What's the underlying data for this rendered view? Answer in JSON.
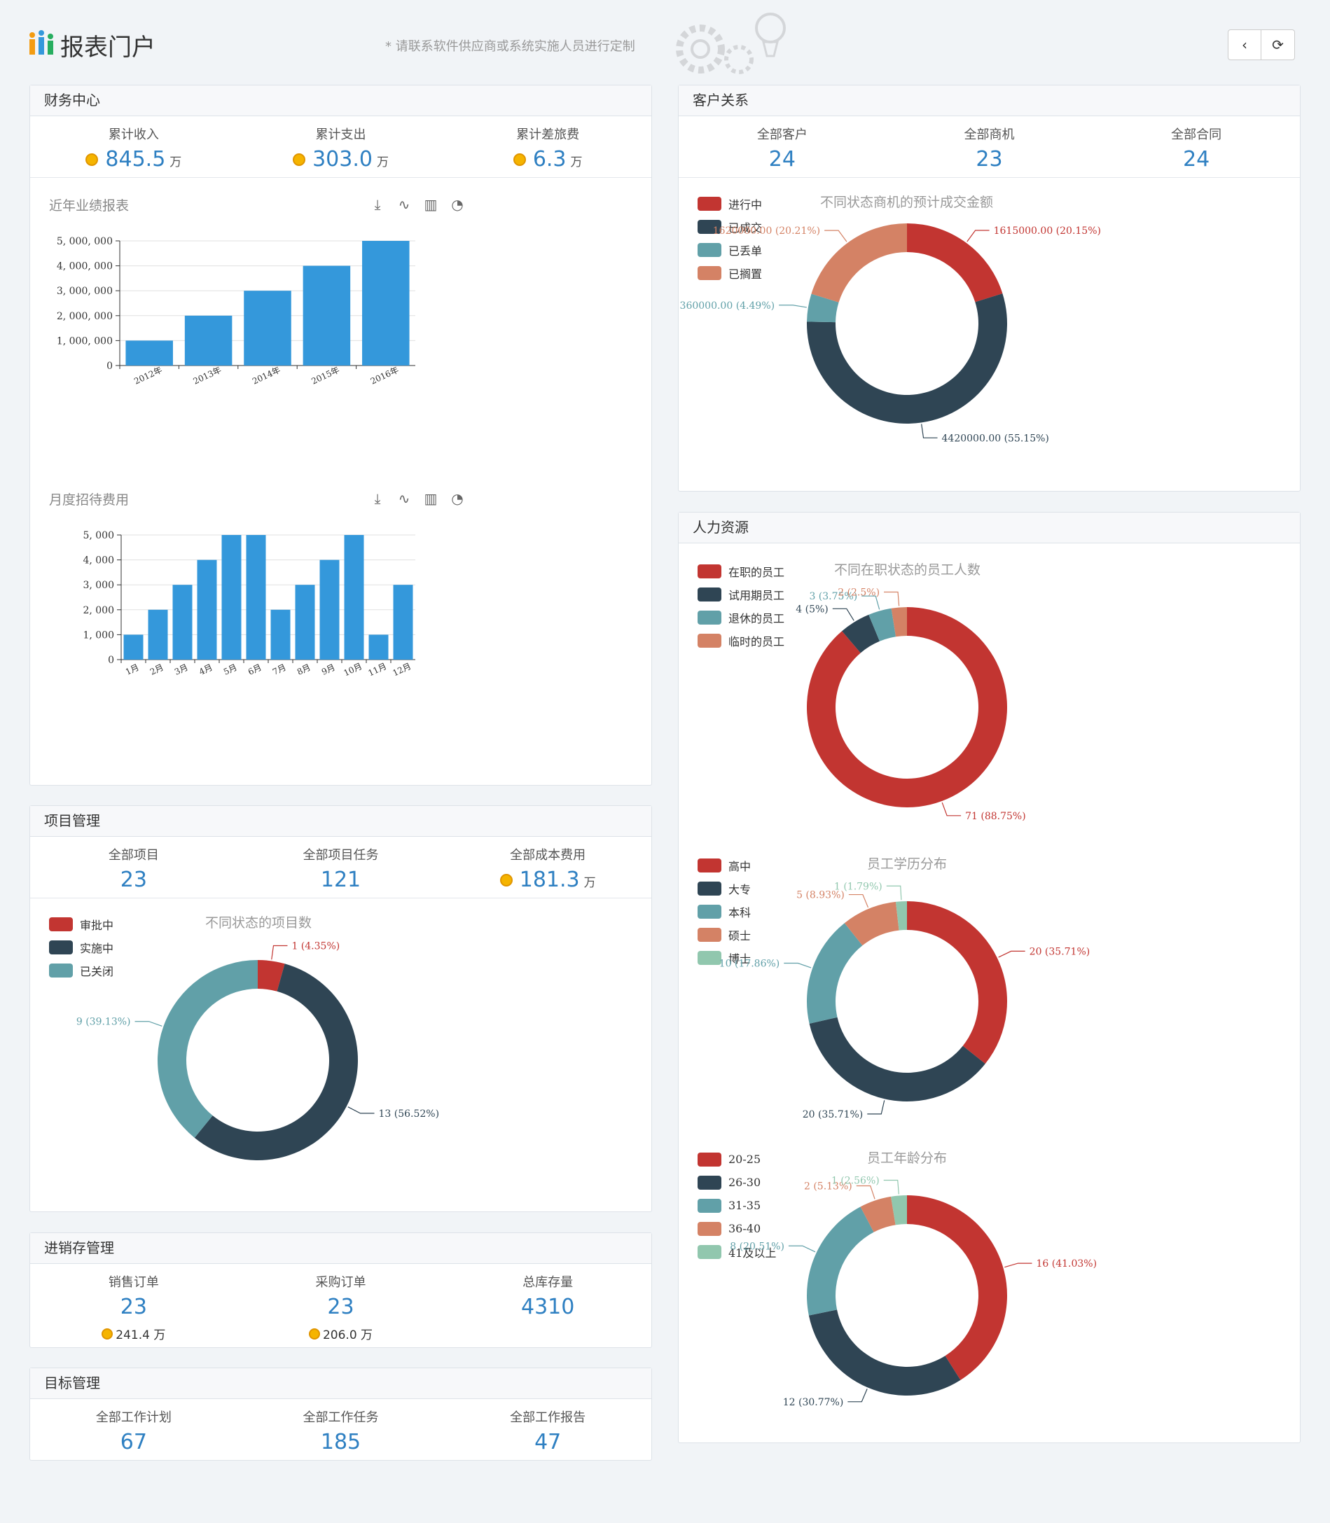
{
  "header": {
    "title": "报表门户",
    "tip": "* 请联系软件供应商或系统实施人员进行定制",
    "back_icon": "‹",
    "refresh_icon": "⟳"
  },
  "finance": {
    "title": "财务中心",
    "stats": [
      {
        "label": "累计收入",
        "value": "845.5",
        "unit": "万"
      },
      {
        "label": "累计支出",
        "value": "303.0",
        "unit": "万"
      },
      {
        "label": "累计差旅费",
        "value": "6.3",
        "unit": "万"
      }
    ],
    "toolbox": [
      "⤓",
      "∿",
      "▥",
      "◔"
    ]
  },
  "crm": {
    "title": "客户关系",
    "stats": [
      {
        "label": "全部客户",
        "value": "24"
      },
      {
        "label": "全部商机",
        "value": "23"
      },
      {
        "label": "全部合同",
        "value": "24"
      }
    ]
  },
  "hr": {
    "title": "人力资源"
  },
  "project": {
    "title": "项目管理",
    "stats": [
      {
        "label": "全部项目",
        "value": "23"
      },
      {
        "label": "全部项目任务",
        "value": "121"
      },
      {
        "label": "全部成本费用",
        "value": "181.3",
        "unit": "万"
      }
    ]
  },
  "inventory": {
    "title": "进销存管理",
    "stats": [
      {
        "label": "销售订单",
        "value": "23",
        "sub": "241.4 万"
      },
      {
        "label": "采购订单",
        "value": "23",
        "sub": "206.0 万"
      },
      {
        "label": "总库存量",
        "value": "4310"
      }
    ]
  },
  "goals": {
    "title": "目标管理",
    "stats": [
      {
        "label": "全部工作计划",
        "value": "67"
      },
      {
        "label": "全部工作任务",
        "value": "185"
      },
      {
        "label": "全部工作报告",
        "value": "47"
      }
    ]
  },
  "chart_data": [
    {
      "id": "yearly",
      "type": "bar",
      "title": "近年业绩报表",
      "categories": [
        "2012年",
        "2013年",
        "2014年",
        "2015年",
        "2016年"
      ],
      "values": [
        1000000,
        2000000,
        3000000,
        4000000,
        5000000
      ],
      "ylim": [
        0,
        5000000
      ],
      "yticks": [
        "0",
        "1, 000, 000",
        "2, 000, 000",
        "3, 000, 000",
        "4, 000, 000",
        "5, 000, 000"
      ],
      "color": "#3498db"
    },
    {
      "id": "monthly",
      "type": "bar",
      "title": "月度招待费用",
      "categories": [
        "1月",
        "2月",
        "3月",
        "4月",
        "5月",
        "6月",
        "7月",
        "8月",
        "9月",
        "10月",
        "11月",
        "12月"
      ],
      "values": [
        1000,
        2000,
        3000,
        4000,
        5000,
        5000,
        2000,
        3000,
        4000,
        5000,
        1000,
        3000
      ],
      "ylim": [
        0,
        5000
      ],
      "yticks": [
        "0",
        "1, 000",
        "2, 000",
        "3, 000",
        "4, 000",
        "5, 000"
      ],
      "color": "#3498db"
    },
    {
      "id": "opportunity",
      "type": "pie",
      "title": "不同状态商机的预计成交金额",
      "legend": [
        "进行中",
        "已成交",
        "已丢单",
        "已搁置"
      ],
      "colors": [
        "#c23531",
        "#2f4554",
        "#61a0a8",
        "#d48265"
      ],
      "values": [
        1615000,
        4420000,
        360000,
        1620000
      ],
      "labels": [
        "1615000.00 (20.15%)",
        "4420000.00 (55.15%)",
        "360000.00 (4.49%)",
        "1620000.00 (20.21%)"
      ]
    },
    {
      "id": "staff_status",
      "type": "pie",
      "title": "不同在职状态的员工人数",
      "legend": [
        "在职的员工",
        "试用期员工",
        "退休的员工",
        "临时的员工"
      ],
      "colors": [
        "#c23531",
        "#2f4554",
        "#61a0a8",
        "#d48265"
      ],
      "values": [
        71,
        4,
        3,
        2
      ],
      "labels": [
        "71 (88.75%)",
        "4 (5%)",
        "3 (3.75%)",
        "2 (2.5%)"
      ]
    },
    {
      "id": "education",
      "type": "pie",
      "title": "员工学历分布",
      "legend": [
        "高中",
        "大专",
        "本科",
        "硕士",
        "博士"
      ],
      "colors": [
        "#c23531",
        "#2f4554",
        "#61a0a8",
        "#d48265",
        "#91c7ae"
      ],
      "values": [
        20,
        20,
        10,
        5,
        1
      ],
      "labels": [
        "20 (35.71%)",
        "20 (35.71%)",
        "10 (17.86%)",
        "5 (8.93%)",
        "1 (1.79%)"
      ]
    },
    {
      "id": "age",
      "type": "pie",
      "title": "员工年龄分布",
      "legend": [
        "20-25",
        "26-30",
        "31-35",
        "36-40",
        "41及以上"
      ],
      "colors": [
        "#c23531",
        "#2f4554",
        "#61a0a8",
        "#d48265",
        "#91c7ae"
      ],
      "values": [
        16,
        12,
        8,
        2,
        1
      ],
      "labels": [
        "16 (41.03%)",
        "12 (30.77%)",
        "8 (20.51%)",
        "2 (5.13%)",
        "1 (2.56%)"
      ]
    },
    {
      "id": "project_status",
      "type": "pie",
      "title": "不同状态的项目数",
      "legend": [
        "审批中",
        "实施中",
        "已关闭"
      ],
      "colors": [
        "#c23531",
        "#2f4554",
        "#61a0a8"
      ],
      "values": [
        1,
        13,
        9
      ],
      "labels": [
        "1 (4.35%)",
        "13 (56.52%)",
        "9 (39.13%)"
      ]
    }
  ]
}
